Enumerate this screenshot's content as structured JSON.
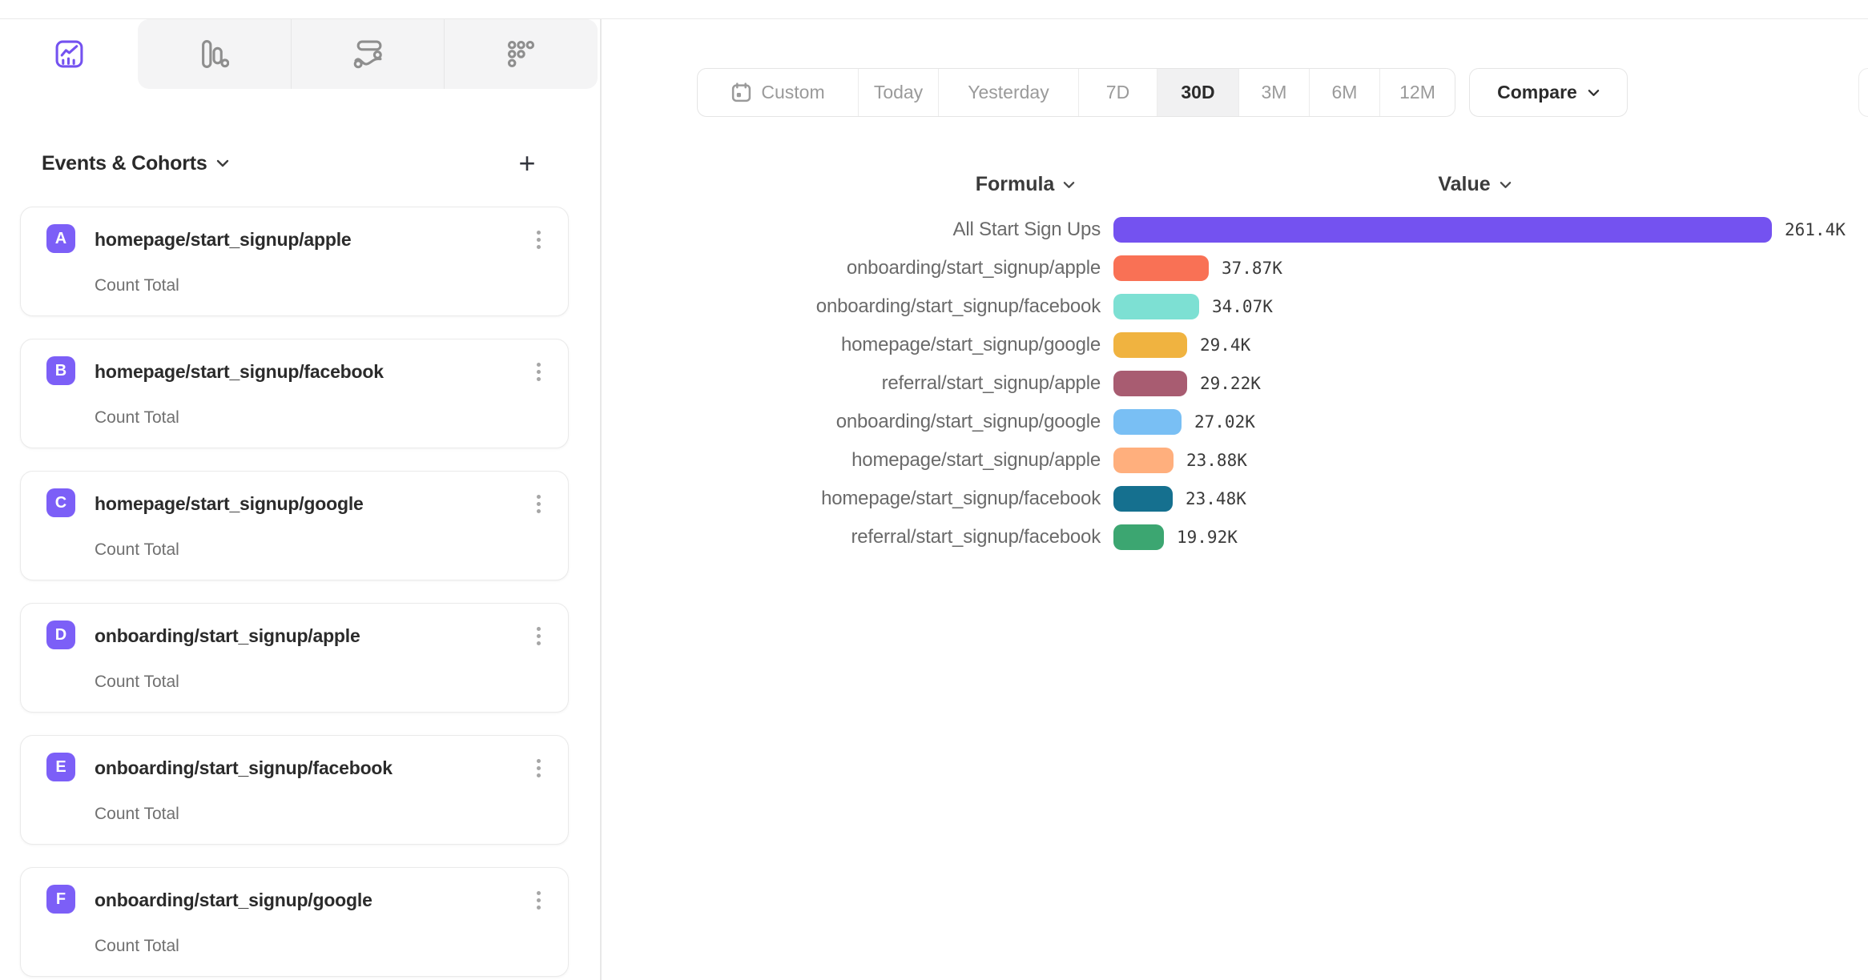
{
  "tabs": {
    "items": [
      {
        "icon": "insights-line-chart-icon",
        "active": true
      },
      {
        "icon": "bar-chart-icon",
        "active": false
      },
      {
        "icon": "flows-icon",
        "active": false
      },
      {
        "icon": "retention-grid-icon",
        "active": false
      }
    ]
  },
  "sidebar": {
    "title": "Events & Cohorts",
    "add_button": "+",
    "badge_color": "#7C5FF7",
    "events": [
      {
        "letter": "A",
        "name": "homepage/start_signup/apple",
        "metric": "Count Total"
      },
      {
        "letter": "B",
        "name": "homepage/start_signup/facebook",
        "metric": "Count Total"
      },
      {
        "letter": "C",
        "name": "homepage/start_signup/google",
        "metric": "Count Total"
      },
      {
        "letter": "D",
        "name": "onboarding/start_signup/apple",
        "metric": "Count Total"
      },
      {
        "letter": "E",
        "name": "onboarding/start_signup/facebook",
        "metric": "Count Total"
      },
      {
        "letter": "F",
        "name": "onboarding/start_signup/google",
        "metric": "Count Total"
      }
    ]
  },
  "toolbar": {
    "date_ranges": [
      "Custom",
      "Today",
      "Yesterday",
      "7D",
      "30D",
      "3M",
      "6M",
      "12M"
    ],
    "selected_range": "30D",
    "compare_label": "Compare"
  },
  "chart_data": {
    "type": "bar",
    "orientation": "horizontal",
    "title": "",
    "column_headers": {
      "formula": "Formula",
      "value": "Value"
    },
    "categories": [
      "All Start Sign Ups",
      "onboarding/start_signup/apple",
      "onboarding/start_signup/facebook",
      "homepage/start_signup/google",
      "referral/start_signup/apple",
      "onboarding/start_signup/google",
      "homepage/start_signup/apple",
      "homepage/start_signup/facebook",
      "referral/start_signup/facebook"
    ],
    "values": [
      261400,
      37870,
      34070,
      29400,
      29220,
      27020,
      23880,
      23480,
      19920
    ],
    "value_labels": [
      "261.4K",
      "37.87K",
      "34.07K",
      "29.4K",
      "29.22K",
      "27.02K",
      "23.88K",
      "23.48K",
      "19.92K"
    ],
    "colors": [
      "#7452F0",
      "#F97155",
      "#7DE0D3",
      "#F0B340",
      "#A85C71",
      "#79BFF4",
      "#FFAF7D",
      "#15708F",
      "#3CA671"
    ],
    "xlim": [
      0,
      261400
    ],
    "grid": "off",
    "legend": "none"
  }
}
